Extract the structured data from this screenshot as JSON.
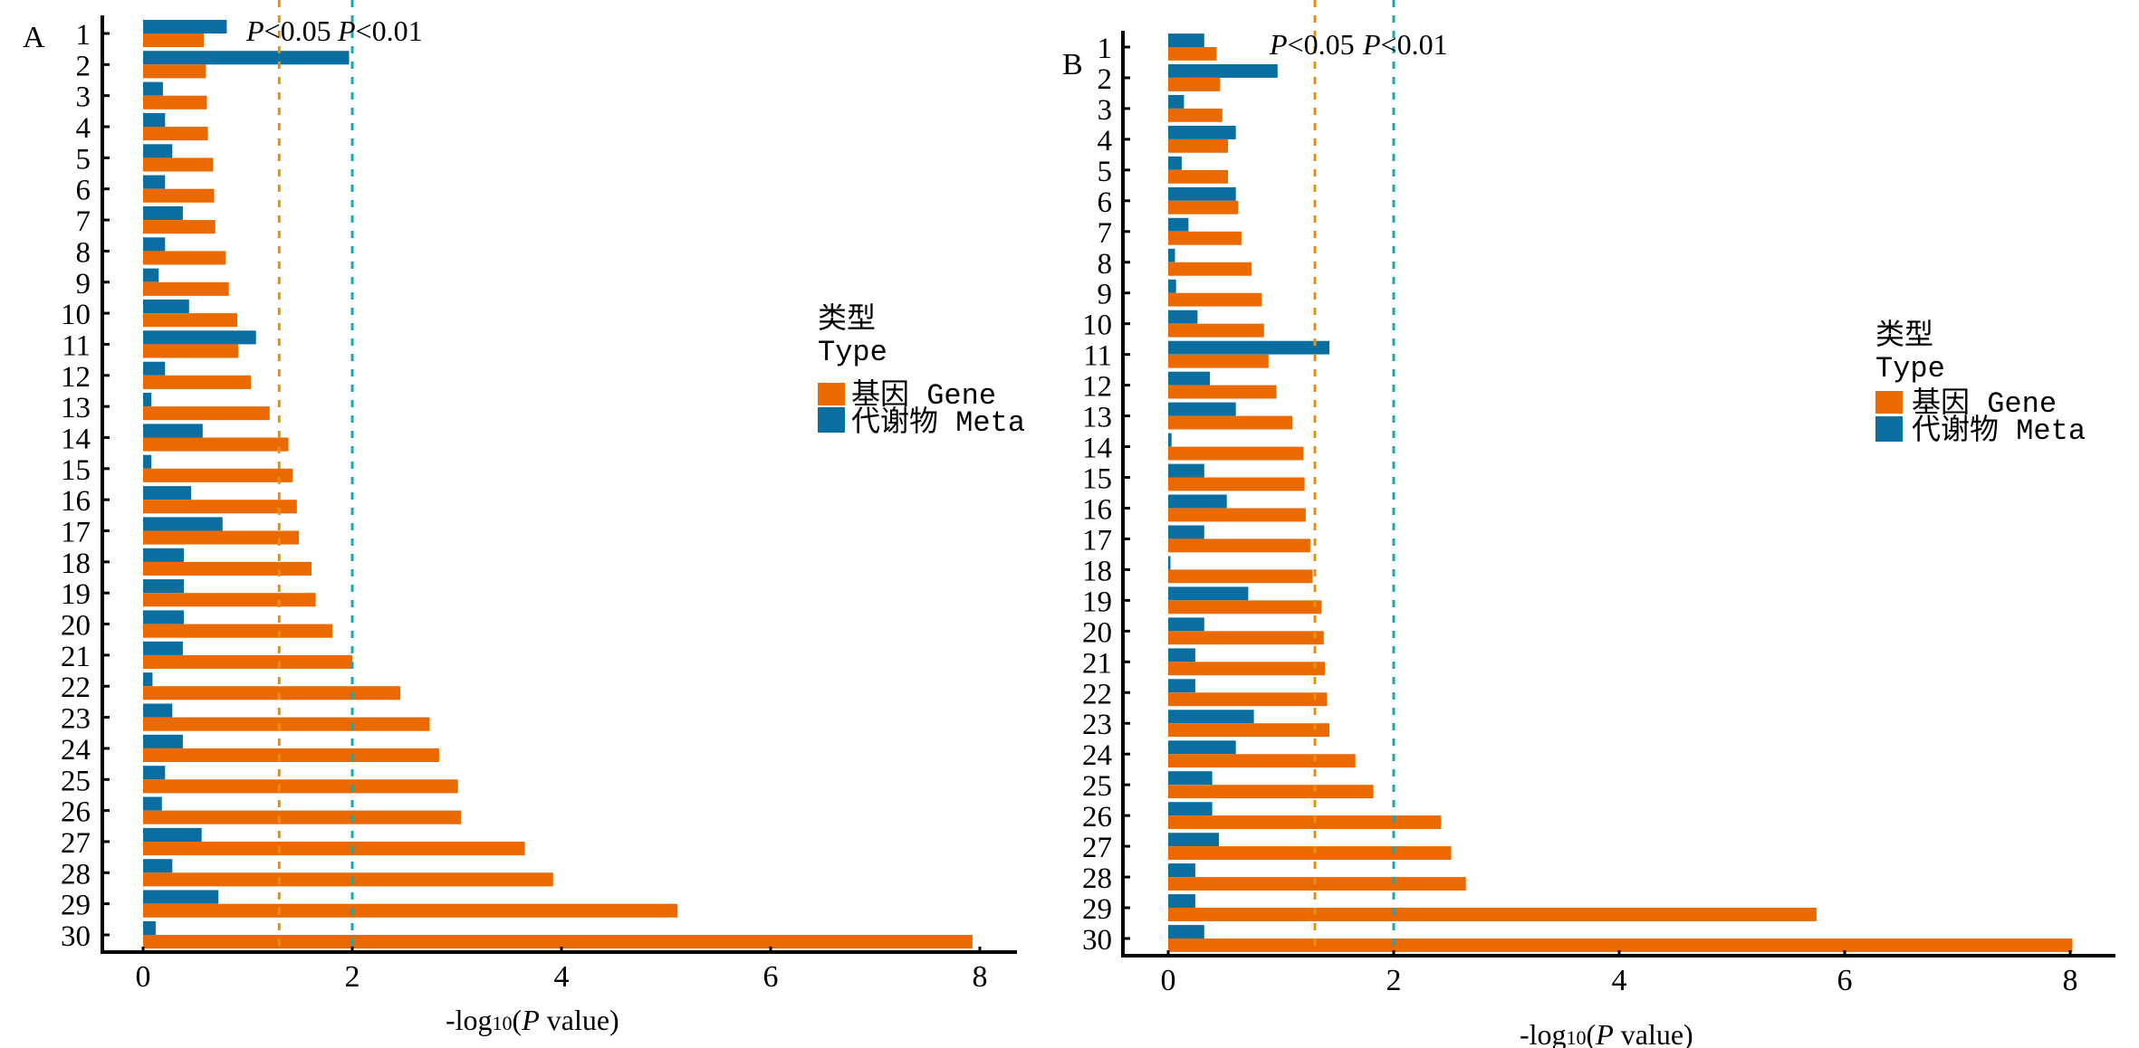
{
  "figure": {
    "colors": {
      "gene": "#EA6A00",
      "meta": "#0A6EA0",
      "threshold_005": "#E8900E",
      "threshold_001": "#19A7B8"
    }
  },
  "chart_data": [
    {
      "type": "bar",
      "orientation": "horizontal",
      "panel_label": "A",
      "title": "",
      "xlabel": "-log10(P value)",
      "xlabel_parts": {
        "prefix": "-log",
        "sub": "10",
        "open": "(",
        "italic": "P",
        "rest": " value)"
      },
      "ylabel": "",
      "xlim": [
        0,
        8
      ],
      "xticks": [
        0,
        2,
        4,
        6,
        8
      ],
      "xtick_labels": [
        "0",
        "2",
        "4",
        "6",
        "8"
      ],
      "categories": [
        "1",
        "2",
        "3",
        "4",
        "5",
        "6",
        "7",
        "8",
        "9",
        "10",
        "11",
        "12",
        "13",
        "14",
        "15",
        "16",
        "17",
        "18",
        "19",
        "20",
        "21",
        "22",
        "23",
        "24",
        "25",
        "26",
        "27",
        "28",
        "29",
        "30"
      ],
      "series": [
        {
          "name": "代谢物 Meta",
          "key": "meta",
          "values": [
            0.8,
            1.97,
            0.19,
            0.21,
            0.28,
            0.21,
            0.38,
            0.21,
            0.15,
            0.44,
            1.08,
            0.21,
            0.08,
            0.57,
            0.08,
            0.46,
            0.76,
            0.39,
            0.39,
            0.39,
            0.38,
            0.09,
            0.28,
            0.38,
            0.21,
            0.18,
            0.56,
            0.28,
            0.72,
            0.12
          ]
        },
        {
          "name": "基因 Gene",
          "key": "gene",
          "values": [
            0.58,
            0.6,
            0.61,
            0.62,
            0.67,
            0.68,
            0.69,
            0.79,
            0.82,
            0.9,
            0.91,
            1.03,
            1.21,
            1.39,
            1.43,
            1.47,
            1.49,
            1.61,
            1.65,
            1.81,
            2.0,
            2.46,
            2.74,
            2.83,
            3.01,
            3.04,
            3.65,
            3.92,
            5.11,
            7.93
          ]
        }
      ],
      "reference_lines": [
        {
          "value": 1.301,
          "label": "P<0.05",
          "label_italic": "P",
          "label_rest": "<0.05",
          "color_key": "threshold_005"
        },
        {
          "value": 2.0,
          "label": "P<0.01",
          "label_italic": "P",
          "label_rest": "<0.01",
          "color_key": "threshold_001"
        }
      ],
      "legend": {
        "title_cn": "类型",
        "title_en": "Type",
        "entries": [
          {
            "label": "基因 Gene",
            "key": "gene"
          },
          {
            "label": "代谢物 Meta",
            "key": "meta"
          }
        ],
        "placement": "right"
      },
      "grid": false
    },
    {
      "type": "bar",
      "orientation": "horizontal",
      "panel_label": "B",
      "title": "",
      "xlabel": "-log10(P value)",
      "xlabel_parts": {
        "prefix": "-log",
        "sub": "10",
        "open": "(",
        "italic": "P",
        "rest": " value)"
      },
      "ylabel": "",
      "xlim": [
        0,
        8
      ],
      "xticks": [
        0,
        2,
        4,
        6,
        8
      ],
      "xtick_labels": [
        "0",
        "2",
        "4",
        "6",
        "8"
      ],
      "categories": [
        "1",
        "2",
        "3",
        "4",
        "5",
        "6",
        "7",
        "8",
        "9",
        "10",
        "11",
        "12",
        "13",
        "14",
        "15",
        "16",
        "17",
        "18",
        "19",
        "20",
        "21",
        "22",
        "23",
        "24",
        "25",
        "26",
        "27",
        "28",
        "29",
        "30"
      ],
      "series": [
        {
          "name": "代谢物 Meta",
          "key": "meta",
          "values": [
            0.32,
            0.97,
            0.14,
            0.6,
            0.12,
            0.6,
            0.18,
            0.06,
            0.07,
            0.26,
            1.43,
            0.37,
            0.6,
            0.03,
            0.32,
            0.52,
            0.32,
            0.02,
            0.71,
            0.32,
            0.24,
            0.24,
            0.76,
            0.6,
            0.39,
            0.39,
            0.45,
            0.24,
            0.24,
            0.32
          ]
        },
        {
          "name": "基因 Gene",
          "key": "gene",
          "values": [
            0.43,
            0.46,
            0.48,
            0.53,
            0.53,
            0.62,
            0.65,
            0.74,
            0.83,
            0.85,
            0.89,
            0.96,
            1.1,
            1.2,
            1.21,
            1.22,
            1.26,
            1.28,
            1.36,
            1.38,
            1.39,
            1.41,
            1.43,
            1.66,
            1.82,
            2.42,
            2.51,
            2.64,
            5.75,
            8.02
          ]
        }
      ],
      "reference_lines": [
        {
          "value": 1.301,
          "label": "P<0.05",
          "label_italic": "P",
          "label_rest": "<0.05",
          "color_key": "threshold_005"
        },
        {
          "value": 2.0,
          "label": "P<0.01",
          "label_italic": "P",
          "label_rest": "<0.01",
          "color_key": "threshold_001"
        }
      ],
      "legend": {
        "title_cn": "类型",
        "title_en": "Type",
        "entries": [
          {
            "label": "基因 Gene",
            "key": "gene"
          },
          {
            "label": "代谢物 Meta",
            "key": "meta"
          }
        ],
        "placement": "right"
      },
      "grid": false
    }
  ]
}
